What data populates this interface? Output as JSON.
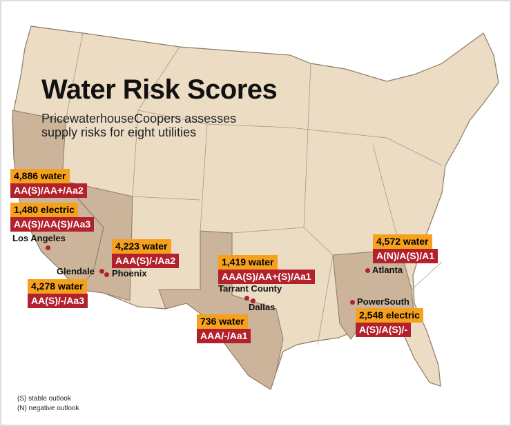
{
  "title": "Water Risk Scores",
  "subtitle_lines": [
    "PricewaterhouseCoopers assesses",
    "supply risks for eight utilities"
  ],
  "utilities": [
    {
      "score": "4,886 water",
      "rating": "AA(S)/AA+/Aa2"
    },
    {
      "score": "1,480 electric",
      "rating": "AA(S)/AA(S)/Aa3"
    },
    {
      "score": "4,223 water",
      "rating": "AAA(S)/-/Aa2"
    },
    {
      "score": "4,278 water",
      "rating": "AA(S)/-/Aa3"
    },
    {
      "score": "1,419 water",
      "rating": "AAA(S)/AA+(S)/Aa1"
    },
    {
      "score": "736 water",
      "rating": "AAA/-/Aa1"
    },
    {
      "score": "4,572 water",
      "rating": "A(N)/A(S)/A1"
    },
    {
      "score": "2,548 electric",
      "rating": "A(S)/A(S)/-"
    }
  ],
  "cities": [
    "Los Angeles",
    "Glendale",
    "Phoenix",
    "Tarrant County",
    "Dallas",
    "Atlanta",
    "PowerSouth"
  ],
  "notes": [
    "(S) stable outlook",
    "(N) negative outlook"
  ]
}
